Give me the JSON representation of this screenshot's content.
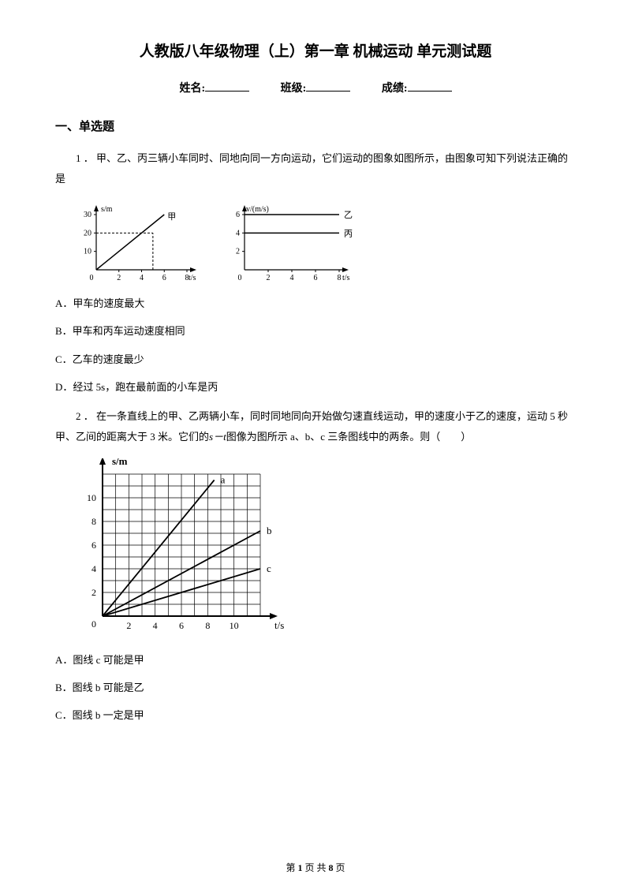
{
  "title": "人教版八年级物理（上）第一章 机械运动 单元测试题",
  "fields": {
    "name_label": "姓名:",
    "class_label": "班级:",
    "score_label": "成绩:"
  },
  "section1": "一、单选题",
  "q1": {
    "text": "1 ． 甲、乙、丙三辆小车同时、同地向同一方向运动，它们运动的图象如图所示，由图象可知下列说法正确的是",
    "optA": "A．甲车的速度最大",
    "optB": "B．甲车和丙车运动速度相同",
    "optC": "C．乙车的速度最少",
    "optD": "D．经过 5s，跑在最前面的小车是丙"
  },
  "chart1a": {
    "ylabel": "s/m",
    "xlabel": "t/s",
    "ytick_labels": [
      "10",
      "20",
      "30"
    ],
    "xtick_labels": [
      "2",
      "4",
      "6",
      "8"
    ],
    "line_label": "甲",
    "xlim": [
      0,
      8
    ],
    "ylim": [
      0,
      30
    ],
    "dash_x": 5,
    "dash_y": 20,
    "line_end": [
      6,
      30
    ],
    "colors": {
      "axis": "#000000",
      "line": "#000000",
      "dash": "#000000"
    }
  },
  "chart1b": {
    "ylabel": "v/(m/s)",
    "xlabel": "t/s",
    "ytick_labels": [
      "2",
      "4",
      "6"
    ],
    "xtick_labels": [
      "2",
      "4",
      "6",
      "8"
    ],
    "lines": [
      {
        "y": 6,
        "label": "乙"
      },
      {
        "y": 4,
        "label": "丙"
      }
    ],
    "xlim": [
      0,
      8
    ],
    "ylim": [
      0,
      6
    ],
    "colors": {
      "axis": "#000000",
      "line": "#000000"
    }
  },
  "q2": {
    "text_pre": "2 ． 在一条直线上的甲、乙两辆小车，同时同地同向开始做匀速直线运动，甲的速度小于乙的速度，运动 5 秒甲、乙间的距离大于 3 米。它们的",
    "formula": "s－t",
    "text_post": "图像为图所示 a、b、c 三条图线中的两条。则（　　）",
    "optA": "A．图线 c 可能是甲",
    "optB": "B．图线 b 可能是乙",
    "optC": "C．图线 b 一定是甲"
  },
  "chart2": {
    "ylabel": "s/m",
    "xlabel": "t/s",
    "xtick_labels": [
      "2",
      "4",
      "6",
      "8",
      "10"
    ],
    "ytick_labels": [
      "2",
      "4",
      "6",
      "8",
      "10"
    ],
    "xlim": [
      0,
      12
    ],
    "ylim": [
      0,
      12
    ],
    "grid_step": 1,
    "lines": [
      {
        "label": "a",
        "end": [
          8.5,
          11.5
        ]
      },
      {
        "label": "b",
        "end": [
          12,
          7.2
        ]
      },
      {
        "label": "c",
        "end": [
          12,
          4
        ]
      }
    ],
    "colors": {
      "axis": "#000000",
      "grid": "#000000",
      "line": "#000000",
      "bg": "#ffffff"
    }
  },
  "footer": {
    "pre": "第 ",
    "page": "1",
    "mid": " 页 共 ",
    "total": "8",
    "post": " 页"
  }
}
